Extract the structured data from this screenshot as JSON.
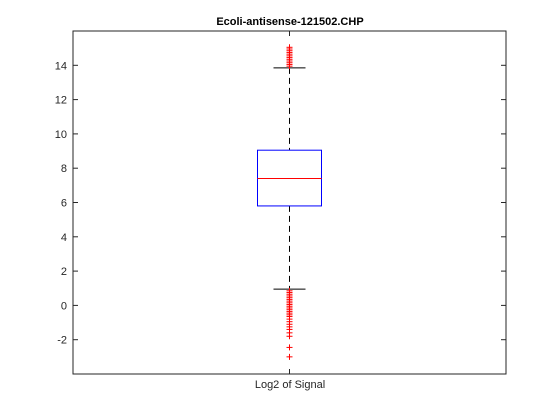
{
  "chart_data": {
    "type": "boxplot",
    "title": "Ecoli-antisense-121502.CHP",
    "xlabel": "",
    "ylabel": "",
    "categories": [
      "Log2 of Signal"
    ],
    "ylim": [
      -4,
      16
    ],
    "yticks": [
      -2,
      0,
      2,
      4,
      6,
      8,
      10,
      12,
      14
    ],
    "grid": false,
    "box": {
      "q1": 5.8,
      "median": 7.4,
      "q3": 9.05,
      "whisker_low": 0.95,
      "whisker_high": 13.85
    },
    "outliers_high": [
      13.95,
      14.05,
      14.15,
      14.25,
      14.35,
      14.45,
      14.55,
      14.65,
      14.75,
      14.85,
      14.95,
      15.05
    ],
    "outliers_low": [
      0.85,
      0.75,
      0.65,
      0.55,
      0.45,
      0.35,
      0.25,
      0.15,
      0.05,
      -0.05,
      -0.15,
      -0.25,
      -0.35,
      -0.45,
      -0.55,
      -0.65,
      -0.8,
      -0.95,
      -1.1,
      -1.25,
      -1.4,
      -1.6,
      -1.8,
      -2.45,
      -3.0
    ],
    "colors": {
      "box": "#0000ff",
      "median": "#ff0000",
      "whisker": "#000000",
      "outlier": "#ff0000",
      "axes": "#262626"
    }
  }
}
